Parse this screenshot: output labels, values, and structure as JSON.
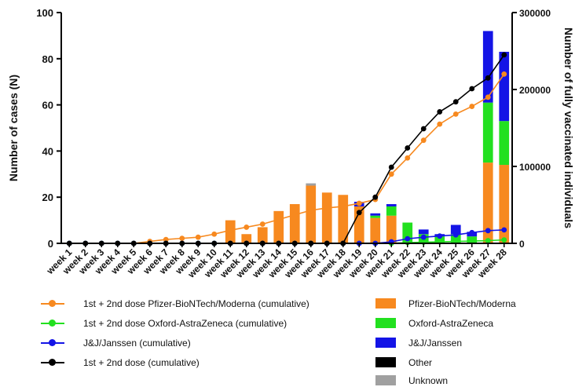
{
  "chart_data": {
    "type": "bar",
    "categories": [
      "week 1",
      "week 2",
      "week 3",
      "week 4",
      "week 5",
      "week 6",
      "week 7",
      "week 8",
      "week 9",
      "week 10",
      "week 11",
      "week 12",
      "week 13",
      "week 14",
      "week 15",
      "week 16",
      "week 17",
      "week 18",
      "week 19",
      "week 20",
      "week 21",
      "week 22",
      "week 23",
      "week 24",
      "week 25",
      "week 26",
      "week 27",
      "week 28"
    ],
    "ylabel": "Number of cases (N)",
    "y2label": "Number of fully vaccinated individuals",
    "ylim": [
      0,
      100
    ],
    "y2lim": [
      0,
      300000
    ],
    "yticks": [
      0,
      20,
      40,
      60,
      80,
      100
    ],
    "y2ticks": [
      "0",
      "100000",
      "200000",
      "300000"
    ],
    "bar_series": [
      {
        "name": "Pfizer-BioNTech/Moderna",
        "color": "#f7891f",
        "values": [
          0,
          0,
          0,
          0,
          0,
          0,
          0,
          0,
          0,
          0,
          10,
          4,
          7,
          14,
          17,
          25,
          22,
          21,
          16,
          11,
          12,
          0,
          0,
          0,
          0,
          0,
          35,
          34
        ]
      },
      {
        "name": "Oxford-AstraZeneca",
        "color": "#22e01f",
        "values": [
          0,
          0,
          0,
          0,
          0,
          0,
          0,
          0,
          0,
          0,
          0,
          0,
          0,
          0,
          0,
          0,
          0,
          0,
          0,
          1,
          4,
          9,
          4,
          3,
          4,
          3,
          26,
          19
        ]
      },
      {
        "name": "J&J/Janssen",
        "color": "#1414e6",
        "values": [
          0,
          0,
          0,
          0,
          0,
          0,
          0,
          0,
          0,
          0,
          0,
          0,
          0,
          0,
          0,
          0,
          0,
          0,
          2,
          1,
          1,
          0,
          2,
          1,
          4,
          2,
          31,
          30
        ]
      },
      {
        "name": "Other",
        "color": "#000000",
        "values": [
          0,
          0,
          0,
          0,
          0,
          0,
          0,
          0,
          0,
          0,
          0,
          0,
          0,
          0,
          0,
          0,
          0,
          0,
          0,
          0,
          0,
          0,
          0,
          0,
          0,
          0,
          0,
          0
        ]
      },
      {
        "name": "Unknown",
        "color": "#a0a0a0",
        "values": [
          0,
          0,
          0,
          0,
          0,
          0,
          0,
          0,
          0,
          0,
          0,
          0,
          0,
          0,
          0,
          1,
          0,
          0,
          0,
          0,
          0,
          0,
          0,
          0,
          0,
          0,
          0,
          0
        ]
      }
    ],
    "line_series": [
      {
        "name": "1st + 2nd dose Pfizer-BioNTech/Moderna (cumulative)",
        "color": "#f7891f",
        "values": [
          0,
          0,
          0,
          0,
          0,
          2500,
          5000,
          6500,
          8000,
          12000,
          17000,
          21000,
          25000,
          31000,
          37000,
          43000,
          46000,
          48000,
          52000,
          57000,
          90000,
          111000,
          134000,
          155000,
          168000,
          178000,
          190000,
          220000
        ]
      },
      {
        "name": "1st + 2nd dose Oxford-AstraZeneca (cumulative)",
        "color": "#22e01f",
        "values": [
          0,
          0,
          0,
          0,
          0,
          0,
          0,
          0,
          0,
          0,
          0,
          0,
          0,
          0,
          0,
          0,
          0,
          0,
          0,
          0,
          0,
          1000,
          1500,
          2000,
          2500,
          3000,
          3500,
          4500
        ]
      },
      {
        "name": "J&J/Janssen (cumulative)",
        "color": "#1414e6",
        "values": [
          0,
          0,
          0,
          0,
          0,
          0,
          0,
          0,
          0,
          0,
          0,
          0,
          0,
          0,
          0,
          0,
          0,
          0,
          0,
          0,
          2000,
          6000,
          8000,
          9500,
          11000,
          14000,
          16500,
          17500
        ]
      },
      {
        "name": "1st + 2nd dose (cumulative)",
        "color": "#000000",
        "values": [
          0,
          0,
          0,
          0,
          0,
          0,
          0,
          0,
          0,
          0,
          0,
          0,
          0,
          0,
          0,
          0,
          0,
          0,
          40000,
          60000,
          99000,
          124000,
          149000,
          171000,
          184000,
          201000,
          215000,
          245000
        ]
      }
    ],
    "legend_placement": "bottom",
    "grid": false
  }
}
